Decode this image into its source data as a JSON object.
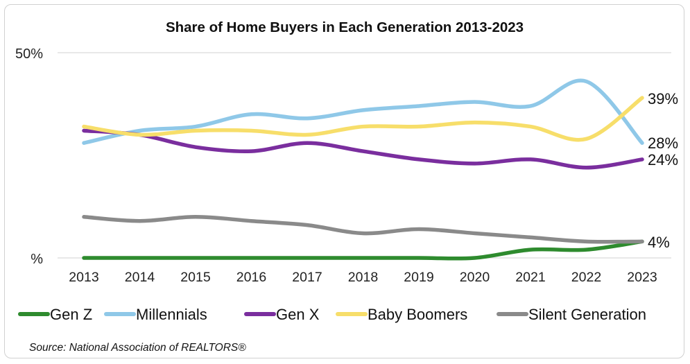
{
  "chart_data": {
    "type": "line",
    "title": "Share of Home Buyers in Each Generation 2013-2023",
    "x": [
      "2013",
      "2014",
      "2015",
      "2016",
      "2017",
      "2018",
      "2019",
      "2020",
      "2021",
      "2022",
      "2023"
    ],
    "y_tick_labels": {
      "top": "50%",
      "bottom": "%"
    },
    "ylim": [
      0,
      50
    ],
    "grid": "top-line-only",
    "legend_position": "bottom",
    "series": [
      {
        "name": "Gen Z",
        "color": "#2e8b2e",
        "values": [
          0,
          0,
          0,
          0,
          0,
          0,
          0,
          0,
          2,
          2,
          4
        ]
      },
      {
        "name": "Millennials",
        "color": "#8fc8e8",
        "values": [
          28,
          31,
          32,
          35,
          34,
          36,
          37,
          38,
          37,
          43,
          28
        ],
        "end_label": "28%"
      },
      {
        "name": "Gen X",
        "color": "#7a2e9e",
        "values": [
          31,
          30,
          27,
          26,
          28,
          26,
          24,
          23,
          24,
          22,
          24
        ],
        "end_label": "24%"
      },
      {
        "name": "Baby Boomers",
        "color": "#f7de6a",
        "values": [
          32,
          30,
          31,
          31,
          30,
          32,
          32,
          33,
          32,
          29,
          39
        ],
        "end_label": "39%"
      },
      {
        "name": "Silent Generation",
        "color": "#8a8a8a",
        "values": [
          10,
          9,
          10,
          9,
          8,
          6,
          7,
          6,
          5,
          4,
          4
        ],
        "end_label": "4%"
      }
    ],
    "source": "Source: National Association of REALTORS®"
  }
}
